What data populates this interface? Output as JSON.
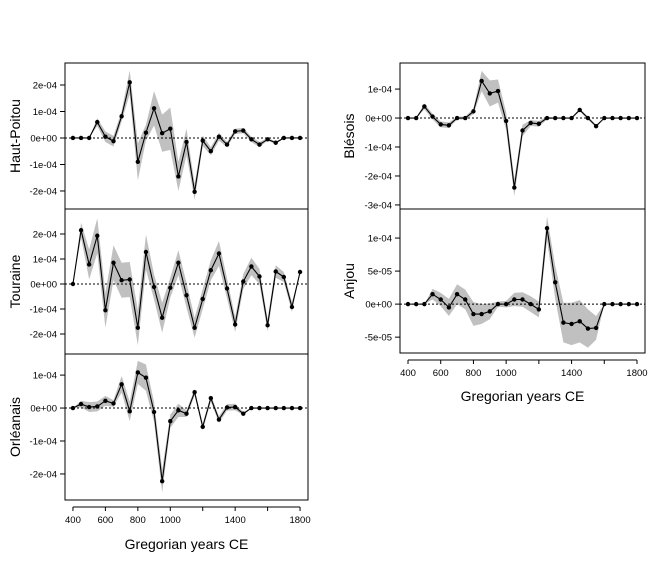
{
  "colors": {
    "line": "#000000",
    "band": "#c0c0c0",
    "zero_line": "#000000"
  },
  "chart_data": [
    {
      "type": "line",
      "ylabel": "Haut-Poitou",
      "xlabel": "",
      "x": [
        400,
        450,
        500,
        550,
        600,
        650,
        700,
        750,
        800,
        850,
        900,
        950,
        1000,
        1050,
        1100,
        1150,
        1200,
        1250,
        1300,
        1350,
        1400,
        1450,
        1500,
        1550,
        1600,
        1650,
        1700,
        1750,
        1800
      ],
      "y": [
        0,
        0,
        0,
        6e-05,
        5e-06,
        -1.2e-05,
        8.2e-05,
        0.00021,
        -9e-05,
        2e-05,
        0.000112,
        1.8e-05,
        3.5e-05,
        -0.000145,
        -1.5e-05,
        -0.000203,
        -1e-05,
        -5e-05,
        5e-06,
        -2.5e-05,
        2.5e-05,
        2.8e-05,
        -5e-06,
        -2.5e-05,
        -5e-06,
        -1.8e-05,
        0,
        0,
        0
      ],
      "band_halfwidth": [
        0,
        0,
        0,
        1.5e-05,
        2e-05,
        2e-05,
        2e-05,
        4.5e-05,
        7e-05,
        3e-05,
        6.5e-05,
        7e-05,
        8e-05,
        5.5e-05,
        5e-05,
        3e-05,
        2e-05,
        1.5e-05,
        1.5e-05,
        1e-05,
        1e-05,
        1e-05,
        1e-05,
        1e-05,
        5e-06,
        5e-06,
        0,
        0,
        0
      ],
      "ylim": [
        -0.000268,
        0.000283
      ],
      "xlim": [
        351,
        1849
      ],
      "yticks": [
        -0.0002,
        -0.0001,
        0,
        0.0001,
        0.0002
      ],
      "ytick_labels": [
        "-2e-04",
        "-1e-04",
        "0e+00",
        "1e-04",
        "2e-04"
      ],
      "xticks": [],
      "xtick_labels": []
    },
    {
      "type": "line",
      "ylabel": "Touraine",
      "xlabel": "",
      "x": [
        400,
        450,
        500,
        550,
        600,
        650,
        700,
        750,
        800,
        850,
        900,
        950,
        1000,
        1050,
        1100,
        1150,
        1200,
        1250,
        1300,
        1350,
        1400,
        1450,
        1500,
        1550,
        1600,
        1650,
        1700,
        1750,
        1800
      ],
      "y": [
        0,
        0.000215,
        7.8e-05,
        0.000193,
        -0.000105,
        8.5e-05,
        1.5e-05,
        1.8e-05,
        -0.000175,
        0.000128,
        -1.2e-05,
        -0.000135,
        -1.5e-05,
        8.5e-05,
        -4.5e-05,
        -0.000175,
        -6e-05,
        5.5e-05,
        0.000122,
        -1.8e-05,
        -0.000162,
        1e-05,
        7e-05,
        3e-05,
        -0.000165,
        5e-05,
        2.8e-05,
        -9.2e-05,
        4.8e-05
      ],
      "band_halfwidth": [
        0,
        3e-05,
        6e-05,
        7e-05,
        7e-05,
        7e-05,
        7e-05,
        7e-05,
        7e-05,
        7e-05,
        5e-05,
        6e-05,
        4e-05,
        5e-05,
        5e-05,
        4e-05,
        4e-05,
        4e-05,
        5e-05,
        4e-05,
        3e-05,
        3e-05,
        3.5e-05,
        3e-05,
        2.5e-05,
        2.5e-05,
        2e-05,
        2e-05,
        0
      ],
      "ylim": [
        -0.00028,
        0.0003
      ],
      "xlim": [
        351,
        1849
      ],
      "yticks": [
        -0.0002,
        -0.0001,
        0,
        0.0001,
        0.0002
      ],
      "ytick_labels": [
        "-2e-04",
        "-1e-04",
        "0e+00",
        "1e-04",
        "2e-04"
      ],
      "xticks": [],
      "xtick_labels": []
    },
    {
      "type": "line",
      "ylabel": "Orléanais",
      "xlabel": "Gregorian years CE",
      "x": [
        400,
        450,
        500,
        550,
        600,
        650,
        700,
        750,
        800,
        850,
        900,
        950,
        1000,
        1050,
        1100,
        1150,
        1200,
        1250,
        1300,
        1350,
        1400,
        1450,
        1500,
        1550,
        1600,
        1650,
        1700,
        1750,
        1800
      ],
      "y": [
        0,
        1.2e-05,
        3e-06,
        5e-06,
        2.2e-05,
        1.4e-05,
        7.2e-05,
        -1e-05,
        0.000108,
        9.2e-05,
        -1.2e-05,
        -0.000222,
        -4e-05,
        -7e-06,
        -1.7e-05,
        4.8e-05,
        -5.7e-05,
        3e-05,
        -3.5e-05,
        2e-06,
        3e-06,
        -1.7e-05,
        0,
        0,
        0,
        0,
        0,
        0,
        0
      ],
      "band_halfwidth": [
        0,
        1e-05,
        1.5e-05,
        1.5e-05,
        1.5e-05,
        1e-05,
        2.5e-05,
        3e-05,
        3.5e-05,
        4e-05,
        3e-05,
        3.5e-05,
        2e-05,
        2e-05,
        1e-05,
        1e-05,
        1e-05,
        1e-05,
        1e-05,
        1e-05,
        1e-05,
        5e-06,
        0,
        0,
        0,
        0,
        0,
        0,
        0
      ],
      "ylim": [
        -0.000279,
        0.000164
      ],
      "xlim": [
        351,
        1849
      ],
      "yticks": [
        -0.0002,
        -0.0001,
        0,
        0.0001
      ],
      "ytick_labels": [
        "-2e-04",
        "-1e-04",
        "0e+00",
        "1e-04"
      ],
      "xticks": [
        400,
        600,
        800,
        1000,
        1200,
        1400,
        1600,
        1800
      ],
      "xtick_labels": [
        "400",
        "600",
        "800",
        "1000",
        "",
        "1400",
        "",
        "1800"
      ]
    },
    {
      "type": "line",
      "ylabel": "Blésois",
      "xlabel": "",
      "x": [
        400,
        450,
        500,
        550,
        600,
        650,
        700,
        750,
        800,
        850,
        900,
        950,
        1000,
        1050,
        1100,
        1150,
        1200,
        1250,
        1300,
        1350,
        1400,
        1450,
        1500,
        1550,
        1600,
        1650,
        1700,
        1750,
        1800
      ],
      "y": [
        0,
        0,
        4e-05,
        5e-06,
        -2.2e-05,
        -2.5e-05,
        0,
        0,
        2.3e-05,
        0.000128,
        8.5e-05,
        9.3e-05,
        -1e-05,
        -0.00024,
        -4.3e-05,
        -1.7e-05,
        -2e-05,
        0,
        0,
        0,
        0,
        2.8e-05,
        0,
        -2.8e-05,
        0,
        0,
        0,
        0,
        0
      ],
      "band_halfwidth": [
        0,
        0,
        1e-05,
        1e-05,
        1e-05,
        1e-05,
        5e-06,
        5e-06,
        1e-05,
        3.5e-05,
        4.5e-05,
        4e-05,
        3e-05,
        3e-05,
        2e-05,
        1e-05,
        1e-05,
        5e-06,
        0,
        0,
        0,
        5e-06,
        5e-06,
        5e-06,
        0,
        0,
        0,
        0,
        0
      ],
      "ylim": [
        -0.000314,
        0.00019
      ],
      "xlim": [
        351,
        1849
      ],
      "yticks": [
        -0.0003,
        -0.0002,
        -0.0001,
        0,
        0.0001
      ],
      "ytick_labels": [
        "-3e-04",
        "-2e-04",
        "-1e-04",
        "0e+00",
        "1e-04"
      ],
      "xticks": [],
      "xtick_labels": []
    },
    {
      "type": "line",
      "ylabel": "Anjou",
      "xlabel": "Gregorian years CE",
      "x": [
        400,
        450,
        500,
        550,
        600,
        650,
        700,
        750,
        800,
        850,
        900,
        950,
        1000,
        1050,
        1100,
        1150,
        1200,
        1250,
        1300,
        1350,
        1400,
        1450,
        1500,
        1550,
        1600,
        1650,
        1700,
        1750,
        1800
      ],
      "y": [
        0,
        0,
        0,
        1.5e-05,
        7e-06,
        -5e-06,
        1.5e-05,
        7e-06,
        -1.5e-05,
        -1.5e-05,
        -1.1e-05,
        0,
        0,
        7e-06,
        7e-06,
        0,
        -8e-06,
        0.000115,
        3.3e-05,
        -2.8e-05,
        -3e-05,
        -2.6e-05,
        -3.7e-05,
        -3.6e-05,
        0,
        0,
        0,
        0,
        0
      ],
      "band_halfwidth": [
        0,
        0,
        0,
        8e-06,
        1e-05,
        1.3e-05,
        1.5e-05,
        1.5e-05,
        1.8e-05,
        1.5e-05,
        1.2e-05,
        4e-06,
        5e-06,
        1e-05,
        1.1e-05,
        1.2e-05,
        1.2e-05,
        1.8e-05,
        2.5e-05,
        3e-05,
        3.2e-05,
        3.2e-05,
        2.9e-05,
        1.8e-05,
        0,
        0,
        0,
        0,
        0
      ],
      "ylim": [
        -7.4e-05,
        0.000144
      ],
      "xlim": [
        351,
        1849
      ],
      "yticks": [
        -5e-05,
        0,
        5e-05,
        0.0001
      ],
      "ytick_labels": [
        "-5e-05",
        "0e+00",
        "5e-05",
        "1e-04"
      ],
      "xticks": [
        400,
        600,
        800,
        1000,
        1200,
        1400,
        1600,
        1800
      ],
      "xtick_labels": [
        "400",
        "600",
        "800",
        "1000",
        "",
        "1400",
        "",
        "1800"
      ]
    }
  ]
}
